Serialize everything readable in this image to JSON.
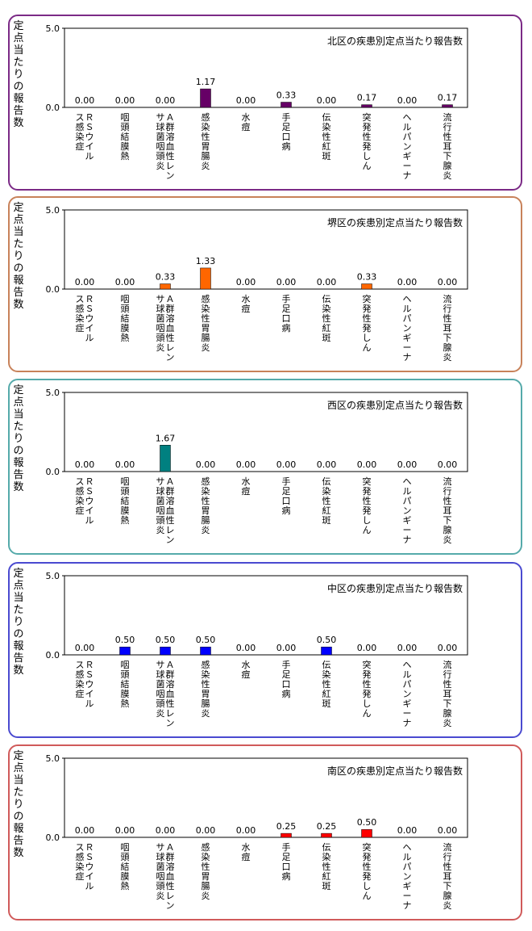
{
  "chart_data": [
    {
      "type": "bar",
      "title": "北区の疾患別定点当たり報告数",
      "ylabel": "定点当たりの報告数",
      "ylim": [
        0,
        5
      ],
      "yticks": [
        "0.0",
        "5.0"
      ],
      "categories": [
        "ＲＳウイルス感染症",
        "咽頭結膜熱",
        "Ａ群溶血性レンサ球菌咽頭炎",
        "感染性胃腸炎",
        "水痘",
        "手足口病",
        "伝染性紅斑",
        "突発性発しん",
        "ヘルパンギーナ",
        "流行性耳下腺炎"
      ],
      "values": [
        0.0,
        0.0,
        0.0,
        1.17,
        0.0,
        0.33,
        0.0,
        0.17,
        0.0,
        0.17
      ],
      "labels": [
        "0.00",
        "0.00",
        "0.00",
        "1.17",
        "0.00",
        "0.33",
        "0.00",
        "0.17",
        "0.00",
        "0.17"
      ],
      "bar_color": "#660066",
      "border_color": "#7b2a86"
    },
    {
      "type": "bar",
      "title": "堺区の疾患別定点当たり報告数",
      "ylabel": "定点当たりの報告数",
      "ylim": [
        0,
        5
      ],
      "yticks": [
        "0.0",
        "5.0"
      ],
      "categories": [
        "ＲＳウイルス感染症",
        "咽頭結膜熱",
        "Ａ群溶血性レンサ球菌咽頭炎",
        "感染性胃腸炎",
        "水痘",
        "手足口病",
        "伝染性紅斑",
        "突発性発しん",
        "ヘルパンギーナ",
        "流行性耳下腺炎"
      ],
      "values": [
        0.0,
        0.0,
        0.33,
        1.33,
        0.0,
        0.0,
        0.0,
        0.33,
        0.0,
        0.0
      ],
      "labels": [
        "0.00",
        "0.00",
        "0.33",
        "1.33",
        "0.00",
        "0.00",
        "0.00",
        "0.33",
        "0.00",
        "0.00"
      ],
      "bar_color": "#ff6600",
      "border_color": "#c8825a"
    },
    {
      "type": "bar",
      "title": "西区の疾患別定点当たり報告数",
      "ylabel": "定点当たりの報告数",
      "ylim": [
        0,
        5
      ],
      "yticks": [
        "0.0",
        "5.0"
      ],
      "categories": [
        "ＲＳウイルス感染症",
        "咽頭結膜熱",
        "Ａ群溶血性レンサ球菌咽頭炎",
        "感染性胃腸炎",
        "水痘",
        "手足口病",
        "伝染性紅斑",
        "突発性発しん",
        "ヘルパンギーナ",
        "流行性耳下腺炎"
      ],
      "values": [
        0.0,
        0.0,
        1.67,
        0.0,
        0.0,
        0.0,
        0.0,
        0.0,
        0.0,
        0.0
      ],
      "labels": [
        "0.00",
        "0.00",
        "1.67",
        "0.00",
        "0.00",
        "0.00",
        "0.00",
        "0.00",
        "0.00",
        "0.00"
      ],
      "bar_color": "#008080",
      "border_color": "#55aaaa"
    },
    {
      "type": "bar",
      "title": "中区の疾患別定点当たり報告数",
      "ylabel": "定点当たりの報告数",
      "ylim": [
        0,
        5
      ],
      "yticks": [
        "0.0",
        "5.0"
      ],
      "categories": [
        "ＲＳウイルス感染症",
        "咽頭結膜熱",
        "Ａ群溶血性レンサ球菌咽頭炎",
        "感染性胃腸炎",
        "水痘",
        "手足口病",
        "伝染性紅斑",
        "突発性発しん",
        "ヘルパンギーナ",
        "流行性耳下腺炎"
      ],
      "values": [
        0.0,
        0.5,
        0.5,
        0.5,
        0.0,
        0.0,
        0.5,
        0.0,
        0.0,
        0.0
      ],
      "labels": [
        "0.00",
        "0.50",
        "0.50",
        "0.50",
        "0.00",
        "0.00",
        "0.50",
        "0.00",
        "0.00",
        "0.00"
      ],
      "bar_color": "#0000ff",
      "border_color": "#4a4ad0"
    },
    {
      "type": "bar",
      "title": "南区の疾患別定点当たり報告数",
      "ylabel": "定点当たりの報告数",
      "ylim": [
        0,
        5
      ],
      "yticks": [
        "0.0",
        "5.0"
      ],
      "categories": [
        "ＲＳウイルス感染症",
        "咽頭結膜熱",
        "Ａ群溶血性レンサ球菌咽頭炎",
        "感染性胃腸炎",
        "水痘",
        "手足口病",
        "伝染性紅斑",
        "突発性発しん",
        "ヘルパンギーナ",
        "流行性耳下腺炎"
      ],
      "values": [
        0.0,
        0.0,
        0.0,
        0.0,
        0.0,
        0.25,
        0.25,
        0.5,
        0.0,
        0.0
      ],
      "labels": [
        "0.00",
        "0.00",
        "0.00",
        "0.00",
        "0.00",
        "0.25",
        "0.25",
        "0.50",
        "0.00",
        "0.00"
      ],
      "bar_color": "#ff0000",
      "border_color": "#d05a5a"
    }
  ]
}
